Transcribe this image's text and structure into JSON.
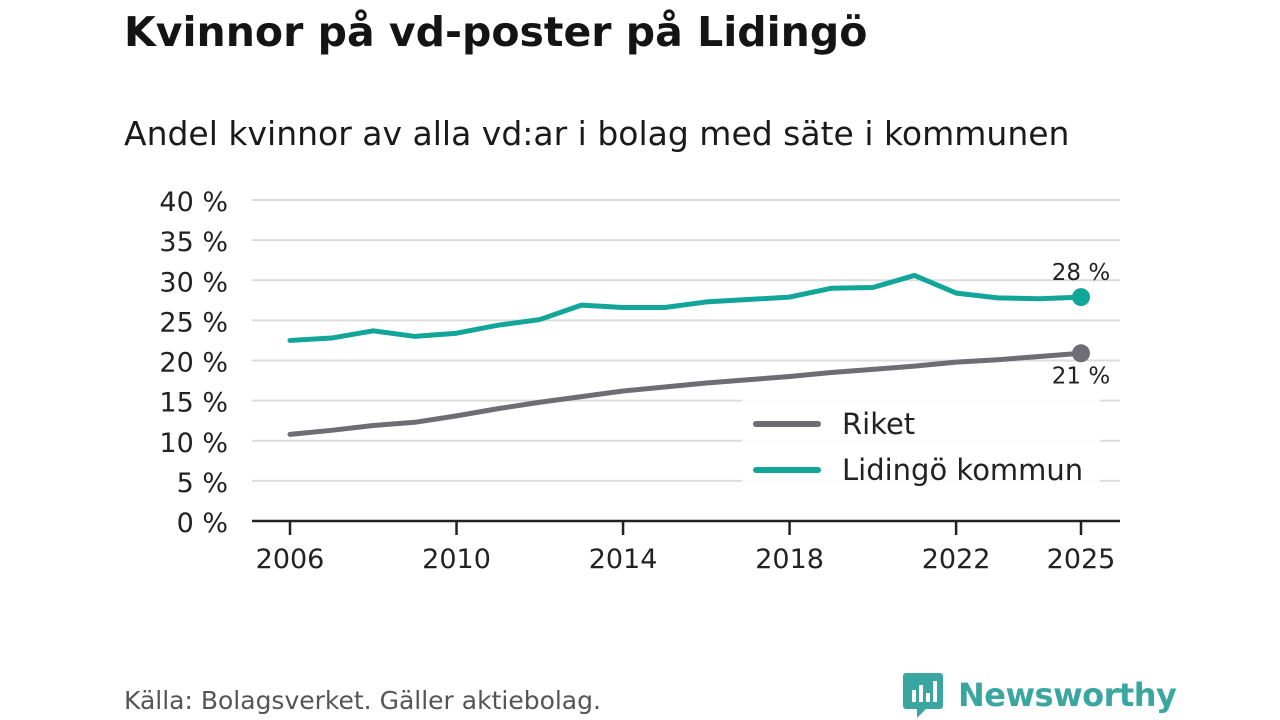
{
  "title": "Kvinnor på vd-poster på Lidingö",
  "subtitle": "Andel kvinnor av alla vd:ar i bolag med säte i kommunen",
  "source": "Källa: Bolagsverket. Gäller aktiebolag.",
  "brand": {
    "name": "Newsworthy",
    "color": "#3aa6a0",
    "icon": "newsworthy-logo-icon"
  },
  "chart_data": {
    "type": "line",
    "title": "Kvinnor på vd-poster på Lidingö",
    "subtitle": "Andel kvinnor av alla vd:ar i bolag med säte i kommunen",
    "xlabel": "",
    "ylabel": "",
    "ylim": [
      0,
      40
    ],
    "xlim": [
      2006,
      2025
    ],
    "yticks": [
      0,
      5,
      10,
      15,
      20,
      25,
      30,
      35,
      40
    ],
    "ytick_labels": [
      "0 %",
      "5 %",
      "10 %",
      "15 %",
      "20 %",
      "25 %",
      "30 %",
      "35 %",
      "40 %"
    ],
    "xticks": [
      2006,
      2010,
      2014,
      2018,
      2022,
      2025
    ],
    "xtick_labels": [
      "2006",
      "2010",
      "2014",
      "2018",
      "2022",
      "2025"
    ],
    "grid": true,
    "legend_position": "bottom-right",
    "x": [
      2006,
      2007,
      2008,
      2009,
      2010,
      2011,
      2012,
      2013,
      2014,
      2015,
      2016,
      2017,
      2018,
      2019,
      2020,
      2021,
      2022,
      2023,
      2024,
      2025
    ],
    "series": [
      {
        "name": "Riket",
        "color": "#6e6d73",
        "values": [
          10.8,
          11.3,
          11.9,
          12.3,
          13.1,
          14.0,
          14.8,
          15.5,
          16.2,
          16.7,
          17.2,
          17.6,
          18.0,
          18.5,
          18.9,
          19.3,
          19.8,
          20.1,
          20.5,
          20.9
        ],
        "end_label": "21 %"
      },
      {
        "name": "Lidingö kommun",
        "color": "#12a59a",
        "values": [
          22.5,
          22.8,
          23.7,
          23.0,
          23.4,
          24.4,
          25.1,
          26.9,
          26.6,
          26.6,
          27.3,
          27.6,
          27.9,
          29.0,
          29.1,
          30.6,
          28.4,
          27.8,
          27.7,
          27.9
        ],
        "end_label": "28 %"
      }
    ]
  }
}
